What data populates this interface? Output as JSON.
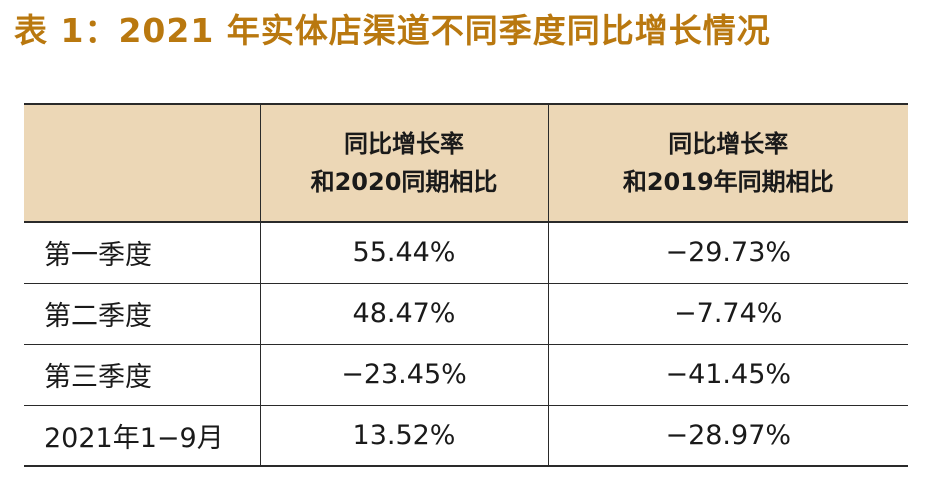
{
  "title": "表 1：2021 年实体店渠道不同季度同比增长情况",
  "table": {
    "headers": [
      {
        "line1": "",
        "line2": ""
      },
      {
        "line1": "同比增长率",
        "line2": "和2020同期相比"
      },
      {
        "line1": "同比增长率",
        "line2": "和2019年同期相比"
      }
    ],
    "rows": [
      {
        "label": "第一季度",
        "vs2020": "55.44%",
        "vs2019": "−29.73%"
      },
      {
        "label": "第二季度",
        "vs2020": "48.47%",
        "vs2019": "−7.74%"
      },
      {
        "label": "第三季度",
        "vs2020": "−23.45%",
        "vs2019": "−41.45%"
      },
      {
        "label": "2021年1−9月",
        "vs2020": "13.52%",
        "vs2019": "−28.97%"
      }
    ]
  },
  "colors": {
    "title": "#b9780f",
    "header_background": "#ecd7b6",
    "rule": "#2a2a2a",
    "text": "#1a1a1a"
  }
}
